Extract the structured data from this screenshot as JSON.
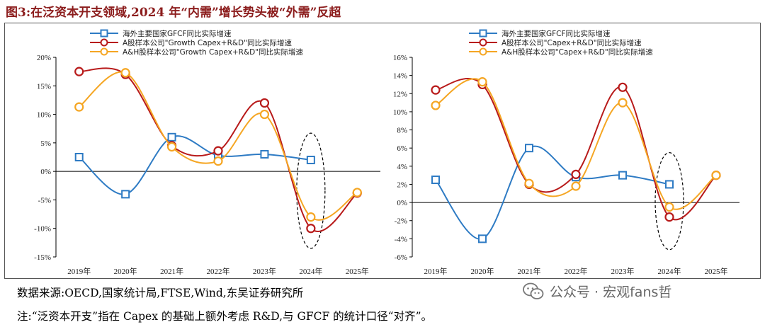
{
  "figure_title": "图3:在泛资本开支领域,2024 年“内需”增长势头被“外需”反超",
  "source_note": "数据来源:OECD,国家统计局,FTSE,Wind,东吴证券研究所",
  "footnote": "注:“泛资本开支”指在 Capex 的基础上额外考虑 R&D,与 GFCF 的统计口径“对齐”。",
  "watermark": "公众号 · 宏观fans哲",
  "colors": {
    "blue": "#2e7bc4",
    "red": "#b81a1a",
    "orange": "#f5a623"
  },
  "chart_data": [
    {
      "type": "line",
      "categories": [
        "2019年",
        "2020年",
        "2021年",
        "2022年",
        "2023年",
        "2024年",
        "2025年"
      ],
      "ylim": [
        -15,
        20
      ],
      "y_ticks": [
        20,
        15,
        10,
        5,
        0,
        -5,
        -10,
        -15
      ],
      "y_tick_labels": [
        "20%",
        "15%",
        "10%",
        "5%",
        "0%",
        "-5%",
        "-10%",
        "-15%"
      ],
      "series": [
        {
          "name": "海外主要国家GFCF同比实际增速",
          "color": "blue",
          "marker": "square",
          "values": [
            2.5,
            -4.0,
            6.0,
            2.8,
            3.0,
            2.0,
            null
          ]
        },
        {
          "name": "A股样本公司\"Growth Capex+R&D\"同比实际增速",
          "color": "red",
          "marker": "circle",
          "values": [
            17.5,
            17.0,
            4.5,
            3.6,
            12.0,
            -10.0,
            -3.8
          ]
        },
        {
          "name": "A&H股样本公司\"Growth Capex+R&D\"同比实际增速",
          "color": "orange",
          "marker": "circle",
          "values": [
            11.3,
            17.3,
            4.3,
            1.8,
            10.0,
            -8.0,
            -3.7
          ]
        }
      ],
      "annotation": {
        "type": "dashed-ellipse",
        "category": "2024年",
        "y_range": [
          -13.5,
          6.7
        ]
      }
    },
    {
      "type": "line",
      "categories": [
        "2019年",
        "2020年",
        "2021年",
        "2022年",
        "2023年",
        "2024年",
        "2025年"
      ],
      "ylim": [
        -6,
        16
      ],
      "y_ticks": [
        16,
        14,
        12,
        10,
        8,
        6,
        4,
        2,
        0,
        -2,
        -4,
        -6
      ],
      "y_tick_labels": [
        "16%",
        "14%",
        "12%",
        "10%",
        "8%",
        "6%",
        "4%",
        "2%",
        "0%",
        "-2%",
        "-4%",
        "-6%"
      ],
      "series": [
        {
          "name": "海外主要国家GFCF同比实际增速",
          "color": "blue",
          "marker": "square",
          "values": [
            2.5,
            -4.0,
            6.0,
            2.8,
            3.0,
            2.0,
            null
          ]
        },
        {
          "name": "A股样本公司\"Capex+R&D\"同比实际增速",
          "color": "red",
          "marker": "circle",
          "values": [
            12.4,
            13.0,
            2.0,
            3.1,
            12.7,
            -1.6,
            3.0
          ]
        },
        {
          "name": "A&H股样本公司\"Capex+R&D\"同比实际增速",
          "color": "orange",
          "marker": "circle",
          "values": [
            10.7,
            13.3,
            2.1,
            1.8,
            11.0,
            -0.5,
            3.0
          ]
        }
      ],
      "annotation": {
        "type": "dashed-ellipse",
        "category": "2024年",
        "y_range": [
          -5.2,
          5.5
        ]
      }
    }
  ]
}
